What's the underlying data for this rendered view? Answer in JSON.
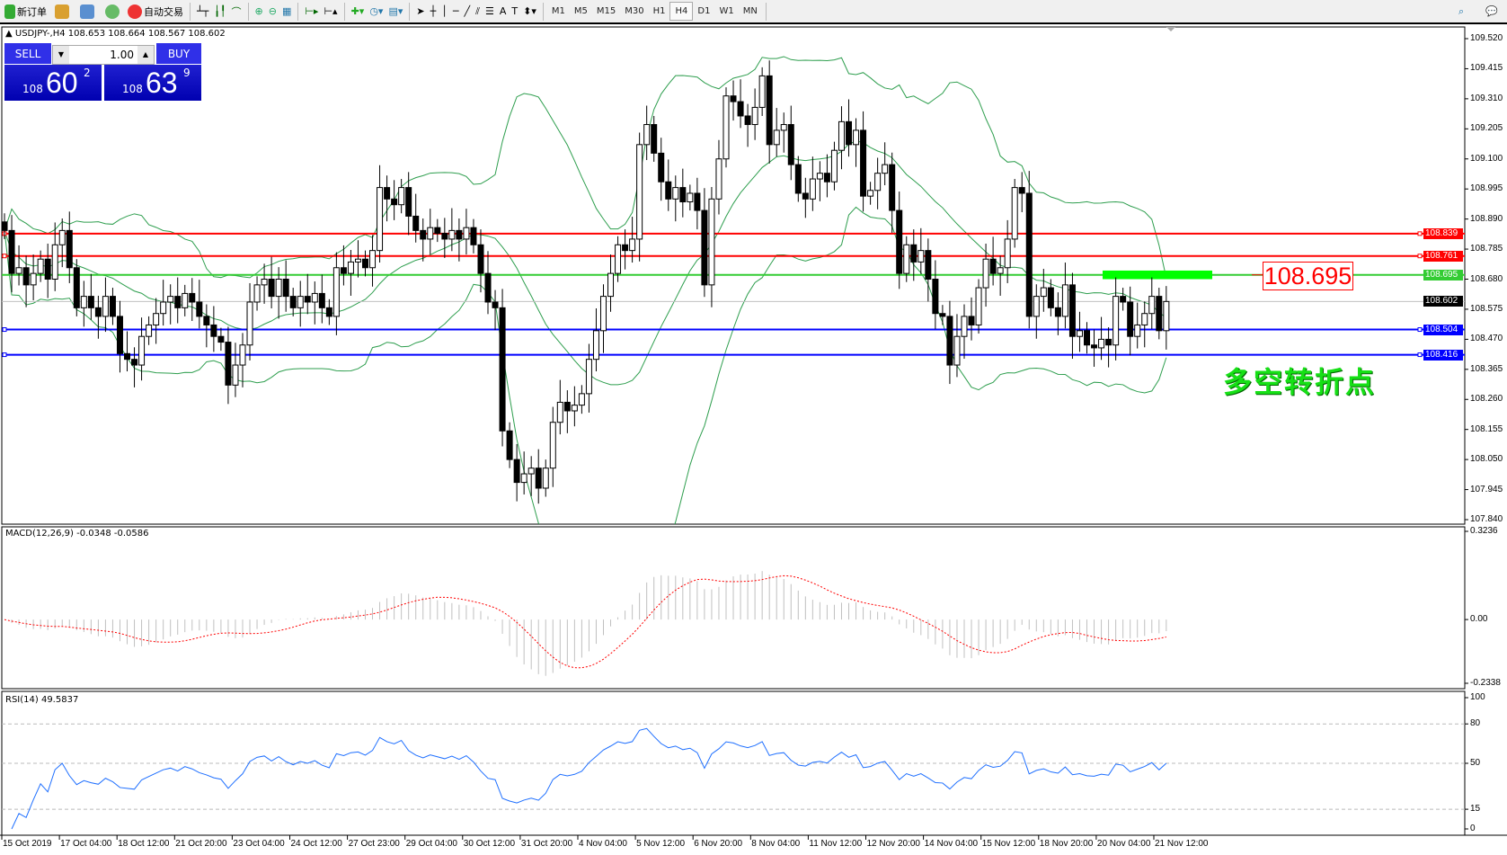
{
  "toolbar": {
    "new_order": "新订单",
    "auto_trading": "自动交易",
    "timeframes": [
      "M1",
      "M5",
      "M15",
      "M30",
      "H1",
      "H4",
      "D1",
      "W1",
      "MN"
    ],
    "active_timeframe": "H4"
  },
  "header": {
    "symbol_info": "USDJPY-,H4  108.653 108.664 108.567 108.602"
  },
  "trade_panel": {
    "sell_label": "SELL",
    "buy_label": "BUY",
    "lot": "1.00",
    "sell": {
      "big": "108",
      "mid": "60",
      "small": "2"
    },
    "buy": {
      "big": "108",
      "mid": "63",
      "small": "9"
    },
    "color": "#0000c0"
  },
  "annotations": {
    "price_box": "108.695",
    "text": "多空转折点",
    "text_color": "#16e016"
  },
  "indicators": {
    "macd_label": "MACD(12,26,9) -0.0348 -0.0586",
    "rsi_label": "RSI(14) 49.5837"
  },
  "chart_data": {
    "type": "candlestick",
    "symbol": "USDJPY",
    "timeframe": "H4",
    "ylim": [
      107.84,
      109.52
    ],
    "y_ticks": [
      "109.520",
      "109.415",
      "109.310",
      "109.205",
      "109.100",
      "108.995",
      "108.890",
      "108.785",
      "108.680",
      "108.575",
      "108.470",
      "108.365",
      "108.260",
      "108.155",
      "108.050",
      "107.945",
      "107.840"
    ],
    "x_ticks": [
      "15 Oct 2019",
      "17 Oct 04:00",
      "18 Oct 12:00",
      "21 Oct 20:00",
      "23 Oct 04:00",
      "24 Oct 12:00",
      "27 Oct 23:00",
      "29 Oct 04:00",
      "30 Oct 12:00",
      "31 Oct 20:00",
      "4 Nov 04:00",
      "5 Nov 12:00",
      "6 Nov 20:00",
      "8 Nov 04:00",
      "11 Nov 12:00",
      "12 Nov 20:00",
      "14 Nov 04:00",
      "15 Nov 12:00",
      "18 Nov 20:00",
      "20 Nov 04:00",
      "21 Nov 12:00"
    ],
    "close": [
      108.85,
      108.7,
      108.72,
      108.66,
      108.7,
      108.75,
      108.68,
      108.8,
      108.85,
      108.72,
      108.58,
      108.62,
      108.58,
      108.55,
      108.62,
      108.55,
      108.42,
      108.4,
      108.38,
      108.48,
      108.52,
      108.56,
      108.6,
      108.62,
      108.58,
      108.63,
      108.6,
      108.55,
      108.52,
      108.48,
      108.46,
      108.31,
      108.38,
      108.45,
      108.6,
      108.66,
      108.68,
      108.62,
      108.68,
      108.62,
      108.58,
      108.62,
      108.6,
      108.63,
      108.58,
      108.55,
      108.72,
      108.7,
      108.74,
      108.75,
      108.72,
      108.78,
      109.0,
      108.96,
      108.94,
      109.0,
      108.9,
      108.85,
      108.82,
      108.86,
      108.84,
      108.82,
      108.85,
      108.82,
      108.86,
      108.8,
      108.7,
      108.6,
      108.58,
      108.15,
      108.05,
      107.97,
      108.0,
      108.02,
      107.95,
      108.02,
      108.18,
      108.25,
      108.22,
      108.24,
      108.28,
      108.4,
      108.5,
      108.62,
      108.7,
      108.8,
      108.78,
      108.82,
      109.15,
      109.22,
      109.12,
      109.02,
      108.96,
      109.0,
      108.95,
      108.98,
      108.92,
      108.66,
      108.96,
      109.1,
      109.32,
      109.3,
      109.25,
      109.22,
      109.28,
      109.39,
      109.15,
      109.2,
      109.22,
      109.08,
      108.98,
      108.96,
      109.03,
      109.05,
      109.02,
      109.13,
      109.23,
      109.15,
      109.2,
      108.97,
      108.99,
      109.05,
      109.08,
      108.92,
      108.7,
      108.8,
      108.74,
      108.78,
      108.68,
      108.56,
      108.55,
      108.38,
      108.48,
      108.55,
      108.52,
      108.65,
      108.75,
      108.7,
      108.72,
      108.82,
      109.0,
      108.98,
      108.55,
      108.62,
      108.65,
      108.58,
      108.55,
      108.66,
      108.48,
      108.5,
      108.45,
      108.44,
      108.47,
      108.45,
      108.62,
      108.6,
      108.48,
      108.52,
      108.56,
      108.62,
      108.5,
      108.602
    ],
    "current_price": "108.602",
    "hlines": [
      {
        "value": "108.839",
        "color": "#ff0000"
      },
      {
        "value": "108.761",
        "color": "#ff0000"
      },
      {
        "value": "108.695",
        "color": "#33cc33"
      },
      {
        "value": "108.504",
        "color": "#0000ff"
      },
      {
        "value": "108.416",
        "color": "#0000ff"
      }
    ],
    "zone": {
      "from": 108.68,
      "to": 108.71,
      "color": "#00ff00"
    },
    "overlays": {
      "bollinger": {
        "period": 20,
        "deviation": 2,
        "color": "#2e9e4e"
      }
    },
    "macd": {
      "fast": 12,
      "slow": 26,
      "signal": 9,
      "ylim": [
        -0.2338,
        0.3236
      ],
      "y_ticks": [
        "0.3236",
        "0.00",
        "-0.2338"
      ],
      "hist_color": "#c0c0c0",
      "signal_color": "#ff0000"
    },
    "rsi": {
      "period": 14,
      "ylim": [
        0,
        100
      ],
      "y_ticks": [
        "100",
        "80",
        "50",
        "15",
        "0"
      ],
      "levels": [
        80,
        50,
        15
      ],
      "color": "#1e6fff"
    }
  }
}
